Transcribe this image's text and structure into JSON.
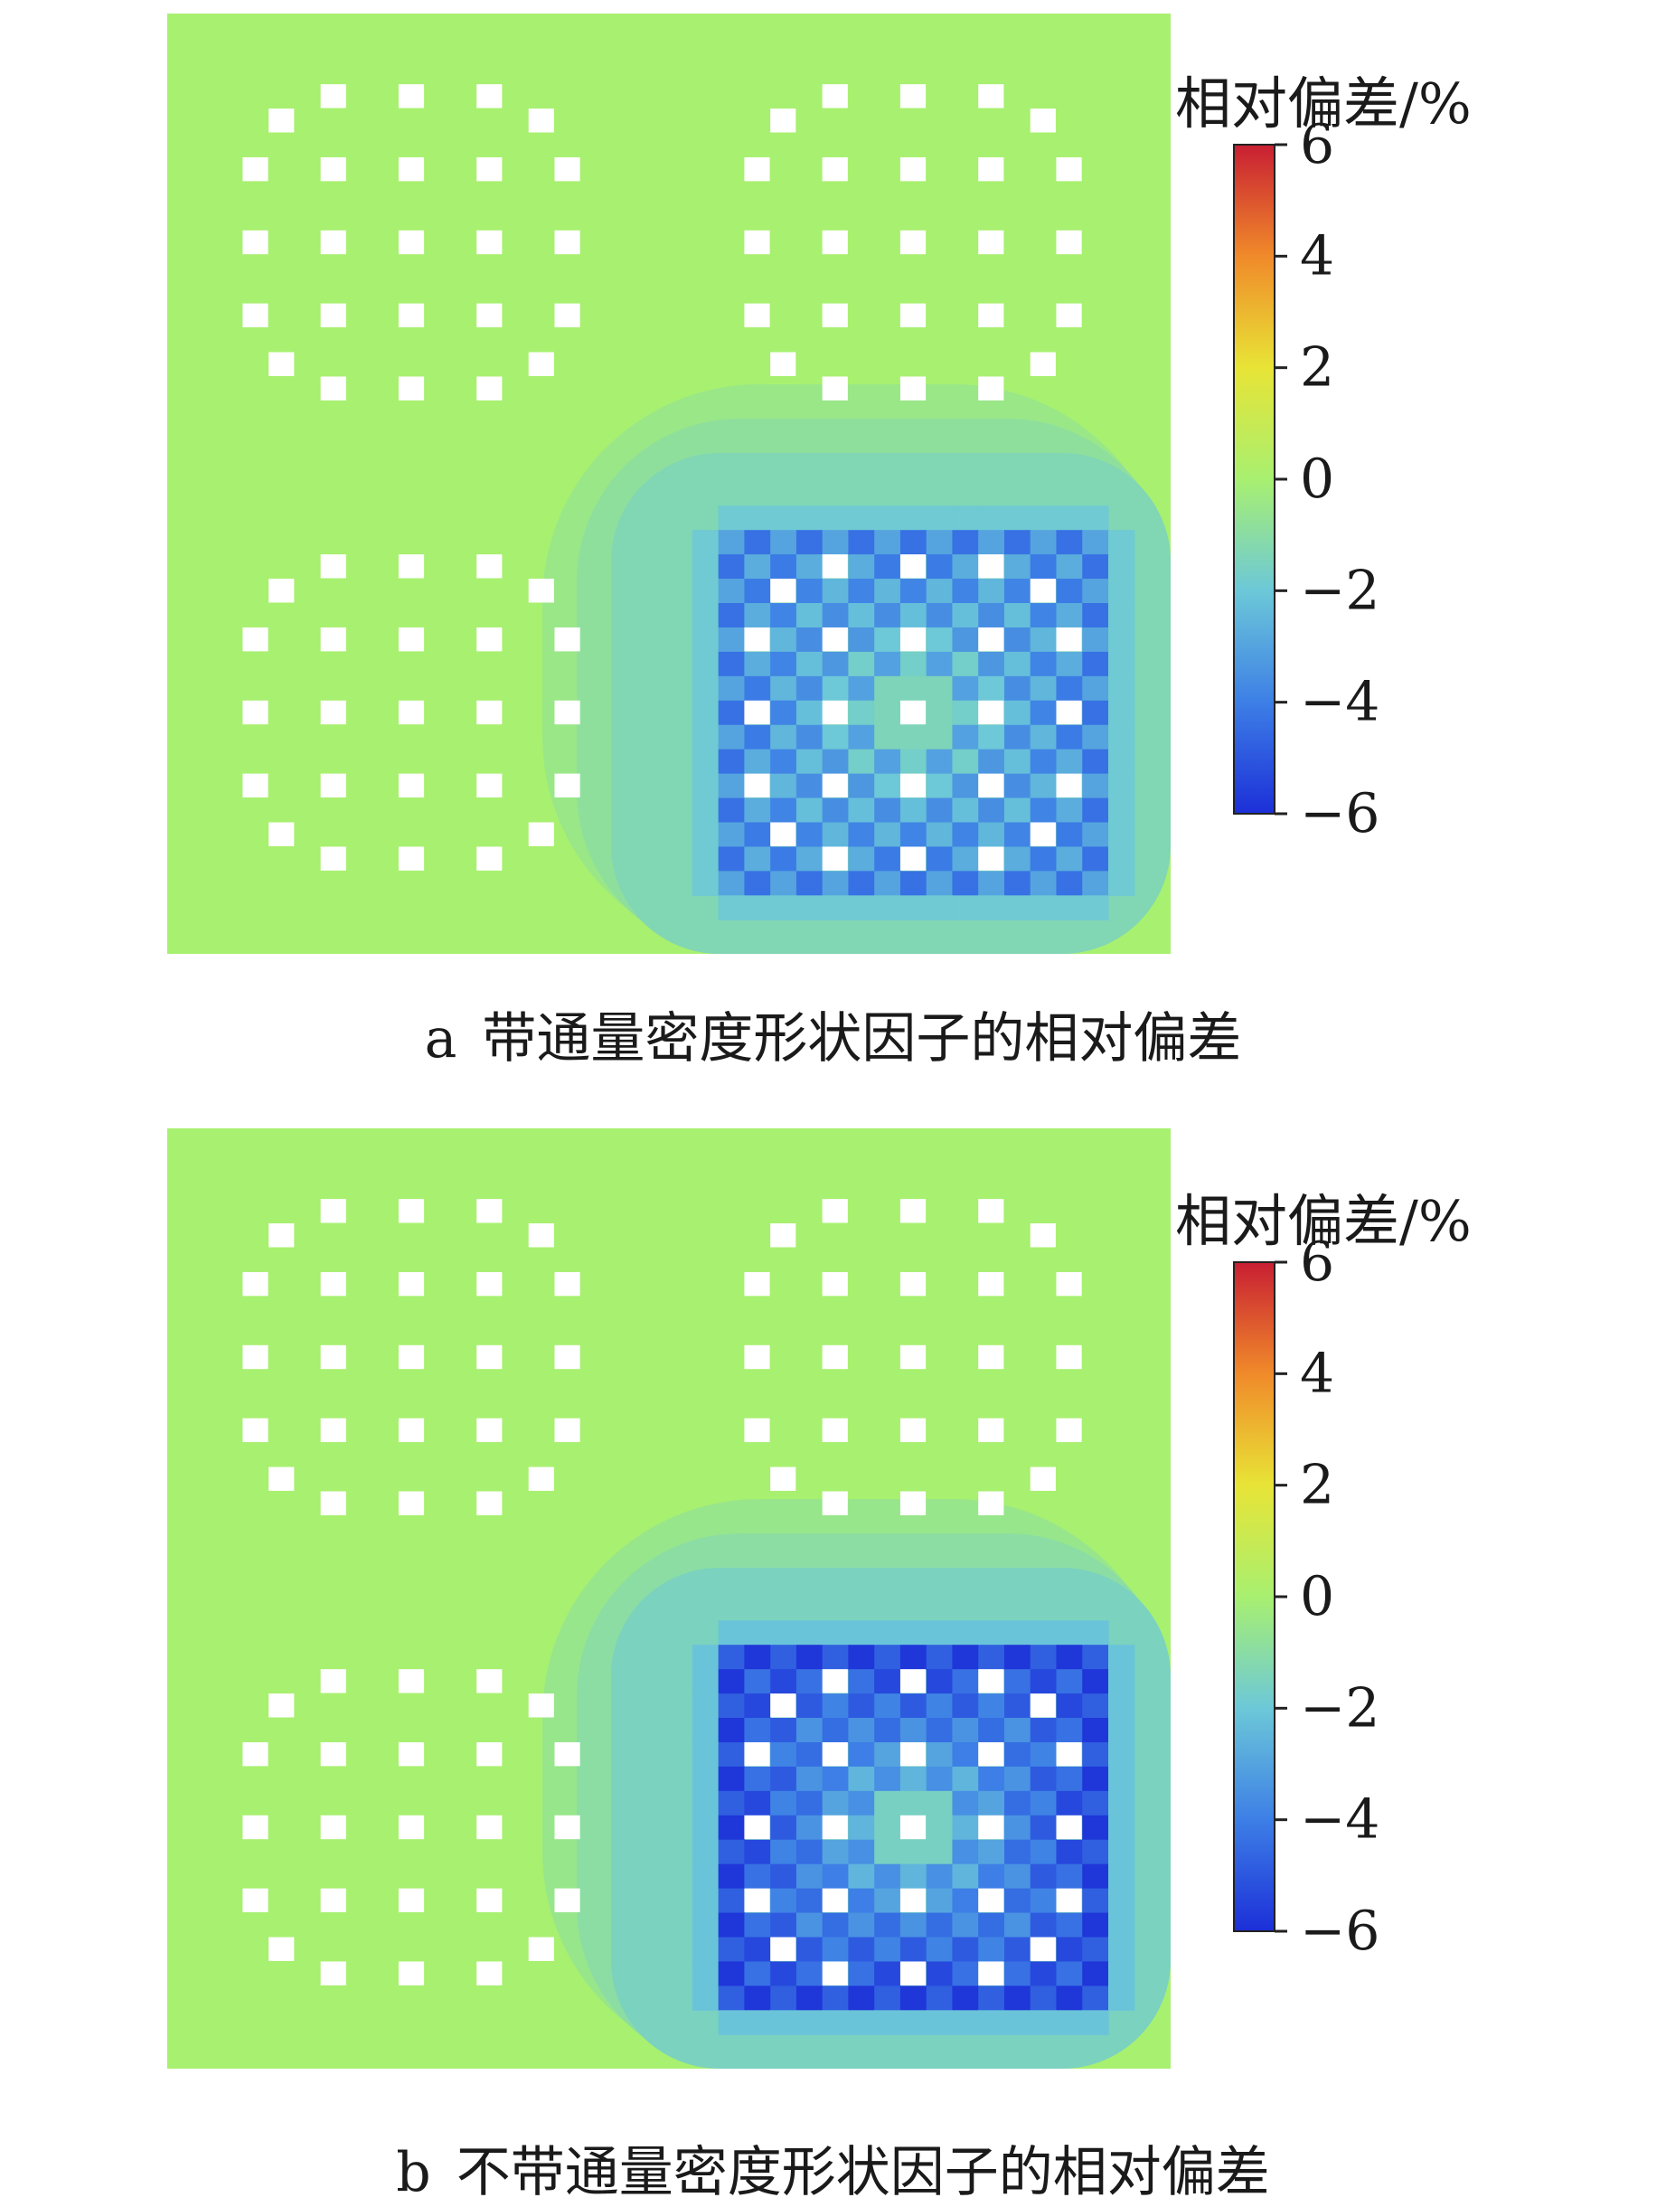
{
  "chart_data": [
    {
      "type": "heatmap",
      "panel_letter": "a",
      "caption": "带通量密度形状因子的相对偏差",
      "colorbar": {
        "title": "相对偏差/%",
        "range": [
          -6,
          6
        ],
        "ticks": [
          "6",
          "4",
          "2",
          "0",
          "−2",
          "−4",
          "−6"
        ],
        "tick_values": [
          6,
          4,
          2,
          0,
          -2,
          -4,
          -6
        ],
        "colors": [
          "#1c2fd8",
          "#3d7fe6",
          "#6cc8d8",
          "#a8f070",
          "#e8e436",
          "#f08a2a",
          "#c81f33"
        ]
      },
      "grid_size": 17,
      "background_value": 0,
      "assembly_layout": [
        "fuel-2d",
        "fuel-2d",
        "fuel-2d",
        "fuel-3d"
      ],
      "hot_assembly_center_value": -2.0,
      "hot_assembly_edge_value": -3.8,
      "hot_assembly_halo_value": -1.3,
      "checker_amplitude": 1.6
    },
    {
      "type": "heatmap",
      "panel_letter": "b",
      "caption": "不带通量密度形状因子的相对偏差",
      "colorbar": {
        "title": "相对偏差/%",
        "range": [
          -6,
          6
        ],
        "ticks": [
          "6",
          "4",
          "2",
          "0",
          "−2",
          "−4",
          "−6"
        ],
        "tick_values": [
          6,
          4,
          2,
          0,
          -2,
          -4,
          -6
        ],
        "colors": [
          "#1c2fd8",
          "#3d7fe6",
          "#6cc8d8",
          "#a8f070",
          "#e8e436",
          "#f08a2a",
          "#c81f33"
        ]
      },
      "grid_size": 17,
      "background_value": 0,
      "assembly_layout": [
        "fuel-2d",
        "fuel-2d",
        "fuel-2d",
        "fuel-3d"
      ],
      "hot_assembly_center_value": -2.2,
      "hot_assembly_edge_value": -5.4,
      "hot_assembly_halo_value": -1.5,
      "checker_amplitude": 1.2
    }
  ]
}
